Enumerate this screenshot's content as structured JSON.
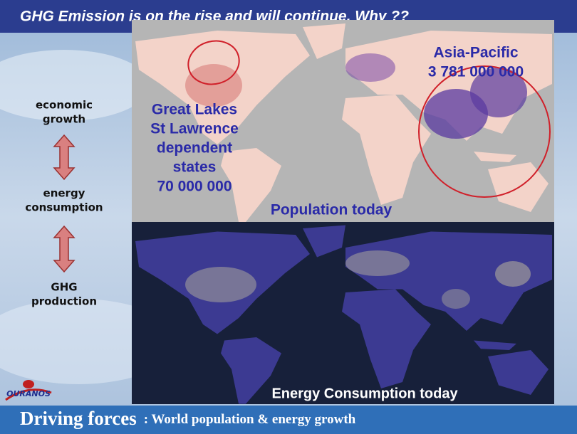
{
  "header": {
    "title": "GHG Emission is on the rise and will continue, Why ??"
  },
  "flow": {
    "steps": [
      {
        "lines": [
          "economic",
          "growth"
        ]
      },
      {
        "lines": [
          "energy",
          "consumption"
        ]
      },
      {
        "lines": [
          "GHG",
          "production"
        ]
      }
    ]
  },
  "population_map": {
    "caption": "Population today",
    "regions": [
      {
        "lines": [
          "Great Lakes",
          "St Lawrence",
          "dependent",
          "states",
          "70 000 000"
        ]
      },
      {
        "lines": [
          "Asia-Pacific",
          "3 781 000 000"
        ]
      }
    ]
  },
  "energy_map": {
    "caption": "Energy Consumption today"
  },
  "logo": {
    "text": "OURANOS"
  },
  "footer": {
    "title": "Driving forces",
    "subtitle": ": World population & energy growth"
  }
}
